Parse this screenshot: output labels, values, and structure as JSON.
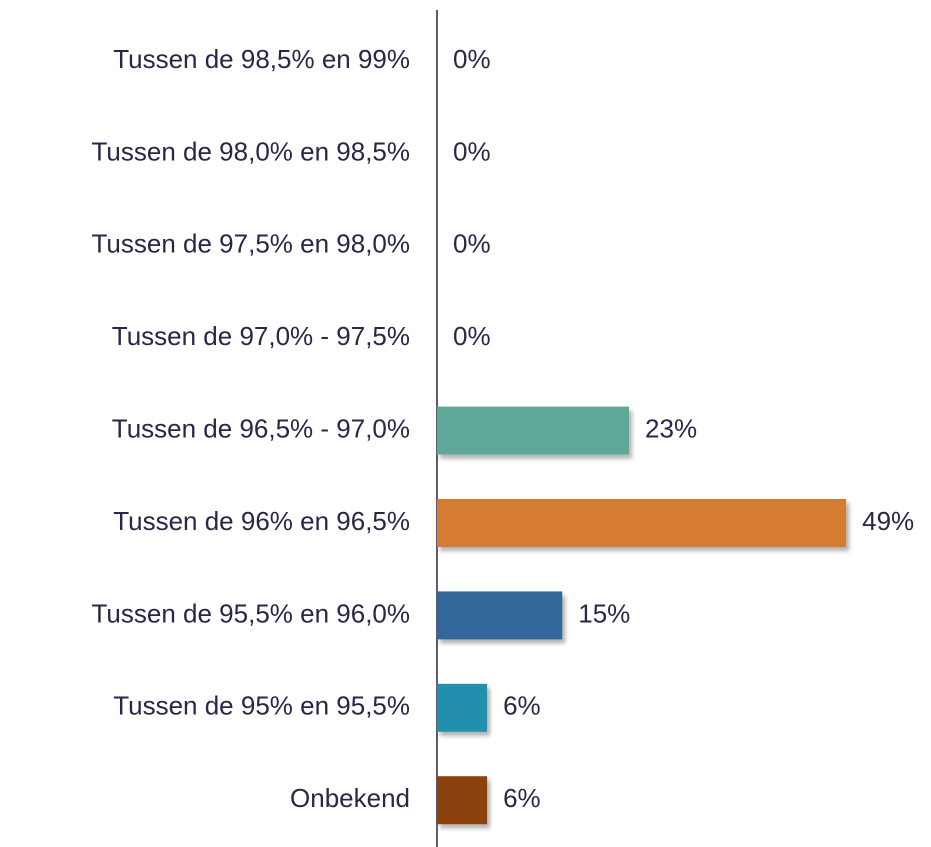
{
  "chart_data": {
    "type": "bar",
    "orientation": "horizontal",
    "categories": [
      "Tussen de 98,5% en 99%",
      "Tussen de 98,0% en 98,5%",
      "Tussen de 97,5% en 98,0%",
      "Tussen de 97,0% - 97,5%",
      "Tussen de 96,5% - 97,0%",
      "Tussen de 96% en 96,5%",
      "Tussen de 95,5% en 96,0%",
      "Tussen de 95% en 95,5%",
      "Onbekend"
    ],
    "values": [
      0,
      0,
      0,
      0,
      23,
      49,
      15,
      6,
      6
    ],
    "value_labels": [
      "0%",
      "0%",
      "0%",
      "0%",
      "23%",
      "49%",
      "15%",
      "6%",
      "6%"
    ],
    "colors": [
      null,
      null,
      null,
      null,
      "#5ea898",
      "#d67b32",
      "#336899",
      "#2190ac",
      "#8b4308"
    ]
  }
}
